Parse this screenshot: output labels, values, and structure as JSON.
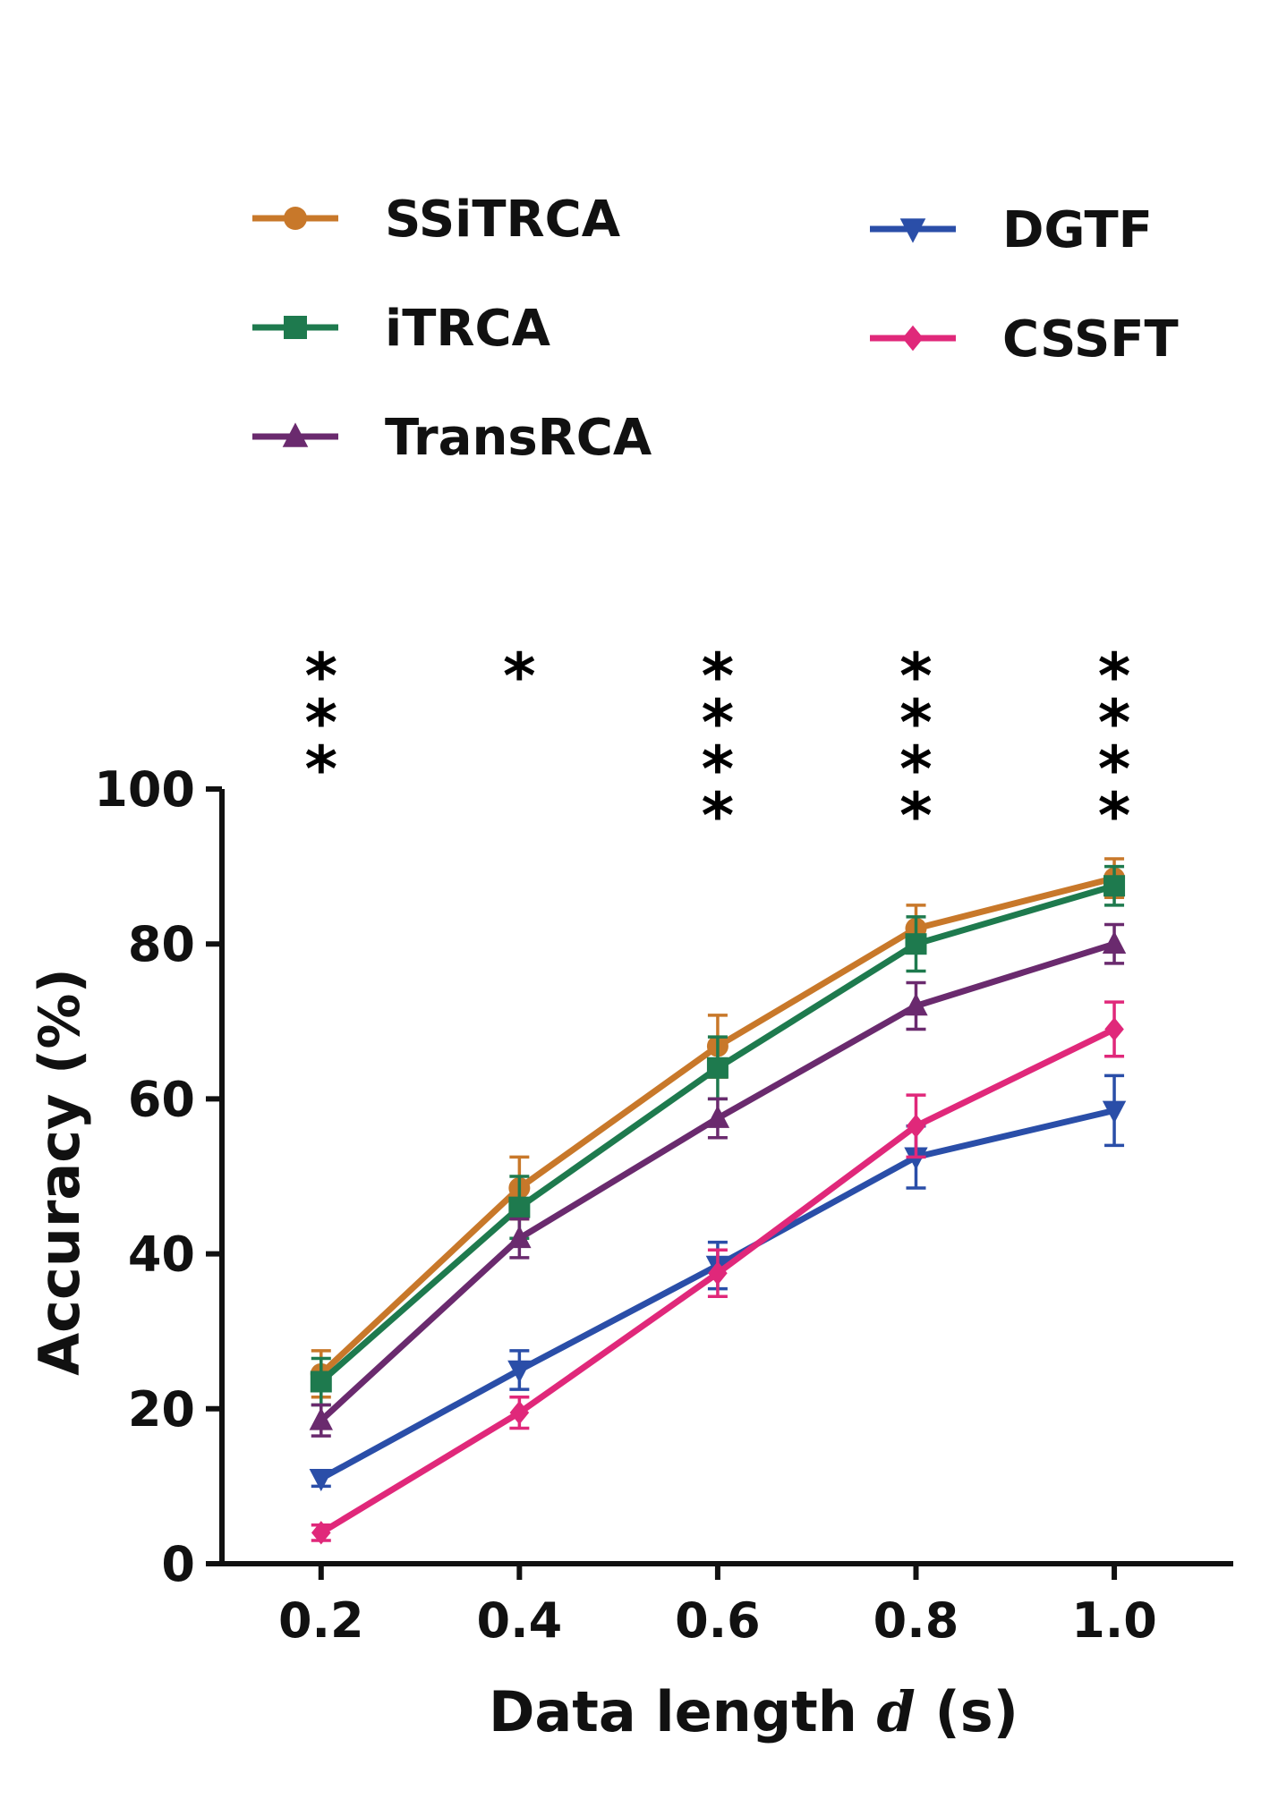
{
  "chart_data": {
    "type": "line",
    "title": "",
    "xlabel_prefix": "Data length ",
    "xlabel_var": "d",
    "xlabel_suffix": " (s)",
    "ylabel": "Accuracy (%)",
    "x": [
      0.2,
      0.4,
      0.6,
      0.8,
      1.0
    ],
    "x_tick_labels": [
      "0.2",
      "0.4",
      "0.6",
      "0.8",
      "1.0"
    ],
    "y_ticks": [
      0,
      20,
      40,
      60,
      80,
      100
    ],
    "y_tick_labels": [
      "0",
      "20",
      "40",
      "60",
      "80",
      "100"
    ],
    "xlim": [
      0.1,
      1.12
    ],
    "ylim": [
      0,
      100
    ],
    "grid": false,
    "legend_position": "top",
    "series": [
      {
        "name": "SSiTRCA",
        "color": "#c8782a",
        "marker": "circle",
        "values": [
          24.5,
          48.5,
          66.8,
          82.0,
          88.5
        ],
        "errors": [
          3.0,
          4.0,
          4.0,
          3.0,
          2.5
        ]
      },
      {
        "name": "iTRCA",
        "color": "#1e7a4e",
        "marker": "square",
        "values": [
          23.5,
          46.0,
          64.0,
          80.0,
          87.5
        ],
        "errors": [
          3.0,
          4.0,
          4.0,
          3.5,
          2.5
        ]
      },
      {
        "name": "TransRCA",
        "color": "#6a2a6e",
        "marker": "triangle-up",
        "values": [
          18.5,
          42.0,
          57.5,
          72.0,
          80.0
        ],
        "errors": [
          2.0,
          2.5,
          2.5,
          3.0,
          2.5
        ]
      },
      {
        "name": "DGTF",
        "color": "#2a4ea8",
        "marker": "triangle-down",
        "values": [
          11.0,
          25.0,
          38.5,
          52.5,
          58.5
        ],
        "errors": [
          1.0,
          2.5,
          3.0,
          4.0,
          4.5
        ]
      },
      {
        "name": "CSSFT",
        "color": "#e0287a",
        "marker": "diamond",
        "values": [
          4.0,
          19.5,
          37.5,
          56.5,
          69.0
        ],
        "errors": [
          1.0,
          2.0,
          3.0,
          4.0,
          3.5
        ]
      }
    ],
    "significance": [
      {
        "x": 0.2,
        "label": "***",
        "count": 3
      },
      {
        "x": 0.4,
        "label": "*",
        "count": 1
      },
      {
        "x": 0.6,
        "label": "****",
        "count": 4
      },
      {
        "x": 0.8,
        "label": "****",
        "count": 4
      },
      {
        "x": 1.0,
        "label": "****",
        "count": 4
      }
    ]
  }
}
